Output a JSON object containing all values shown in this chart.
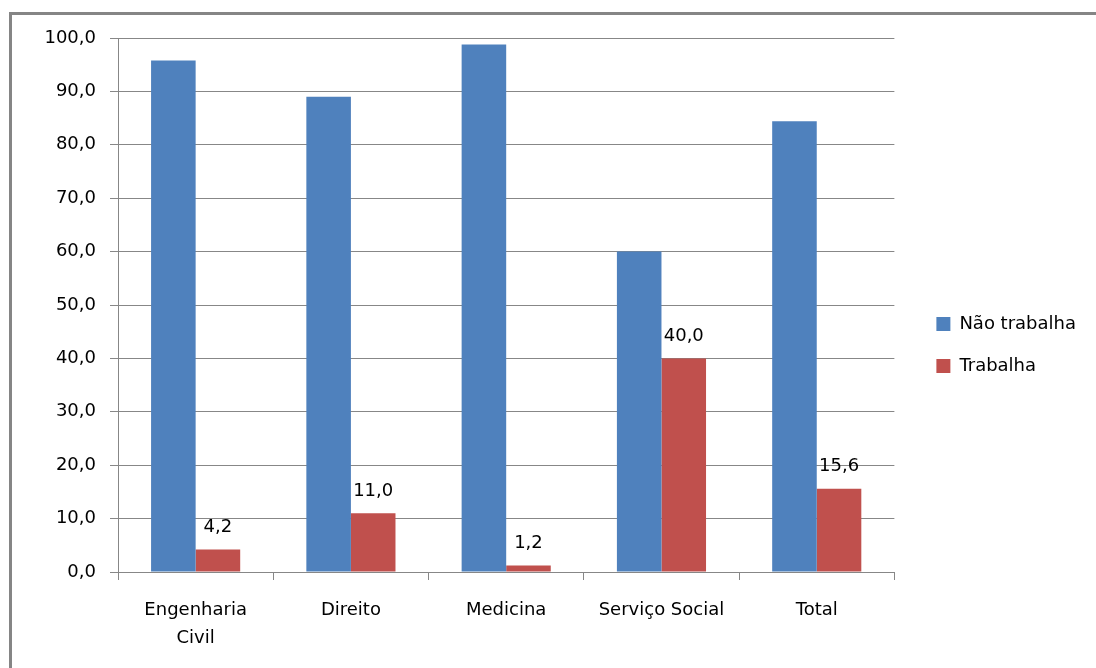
{
  "chart_data": {
    "type": "bar",
    "categories": [
      "Engenharia Civil",
      "Direito",
      "Medicina",
      "Serviço Social",
      "Total"
    ],
    "series": [
      {
        "name": "Não trabalha",
        "color": "#4f81bd",
        "values": [
          95.8,
          89.0,
          98.8,
          60.0,
          84.4
        ]
      },
      {
        "name": "Trabalha",
        "color": "#c0504d",
        "values": [
          4.2,
          11.0,
          1.2,
          40.0,
          15.6
        ],
        "value_labels": [
          "4,2",
          "11,0",
          "1,2",
          "40,0",
          "15,6"
        ]
      }
    ],
    "ylim": [
      0,
      100
    ],
    "yticks": [
      {
        "value": 0,
        "label": "0,0"
      },
      {
        "value": 10,
        "label": "10,0"
      },
      {
        "value": 20,
        "label": "20,0"
      },
      {
        "value": 30,
        "label": "30,0"
      },
      {
        "value": 40,
        "label": "40,0"
      },
      {
        "value": 50,
        "label": "50,0"
      },
      {
        "value": 60,
        "label": "60,0"
      },
      {
        "value": 70,
        "label": "70,0"
      },
      {
        "value": 80,
        "label": "80,0"
      },
      {
        "value": 90,
        "label": "90,0"
      },
      {
        "value": 100,
        "label": "100,0"
      }
    ],
    "grid": "y",
    "legend": "right"
  }
}
